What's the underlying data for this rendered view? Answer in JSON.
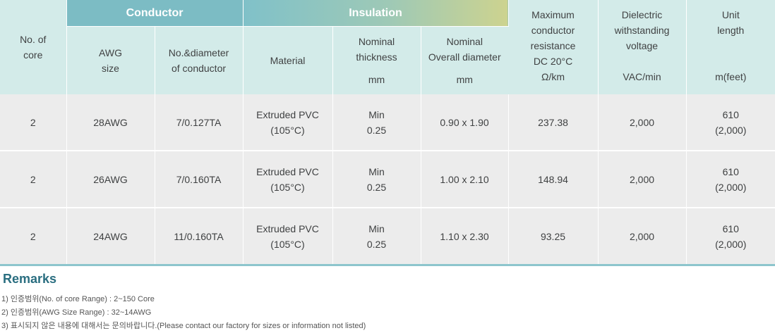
{
  "header": {
    "no_of_core": "No. of\ncore",
    "conductor_group": "Conductor",
    "insulation_group": "Insulation",
    "awg_size": "AWG\nsize",
    "no_diameter": "No.&diameter\nof conductor",
    "material": "Material",
    "nominal_thickness": "Nominal\nthickness",
    "nominal_thickness_unit": "mm",
    "nominal_overall": "Nominal\nOverall diameter",
    "nominal_overall_unit": "mm",
    "max_resistance": "Maximum\nconductor\nresistance\nDC 20°C",
    "max_resistance_unit": "Ω/km",
    "dielectric": "Dielectric\nwithstanding\nvoltage",
    "dielectric_unit": "VAC/min",
    "unit_length": "Unit\nlength",
    "unit_length_unit": "m(feet)"
  },
  "rows": [
    {
      "core": "2",
      "awg": "28AWG",
      "diameter": "7/0.127TA",
      "material": "Extruded PVC\n(105°C)",
      "thickness": "Min\n0.25",
      "overall": "0.90 x 1.90",
      "resistance": "237.38",
      "voltage": "2,000",
      "length": "610\n(2,000)"
    },
    {
      "core": "2",
      "awg": "26AWG",
      "diameter": "7/0.160TA",
      "material": "Extruded PVC\n(105°C)",
      "thickness": "Min\n0.25",
      "overall": "1.00 x 2.10",
      "resistance": "148.94",
      "voltage": "2,000",
      "length": "610\n(2,000)"
    },
    {
      "core": "2",
      "awg": "24AWG",
      "diameter": "11/0.160TA",
      "material": "Extruded PVC\n(105°C)",
      "thickness": "Min\n0.25",
      "overall": "1.10 x 2.30",
      "resistance": "93.25",
      "voltage": "2,000",
      "length": "610\n(2,000)"
    }
  ],
  "remarks": {
    "title": "Remarks",
    "items": [
      "1) 인증범위(No. of core Range) : 2~150 Core",
      "2) 인증범위(AWG Size Range) : 32~14AWG",
      "3) 표시되지 않은 내용에 대해서는 문의바랍니다.(Please contact our factory for sizes or information not listed)"
    ]
  }
}
